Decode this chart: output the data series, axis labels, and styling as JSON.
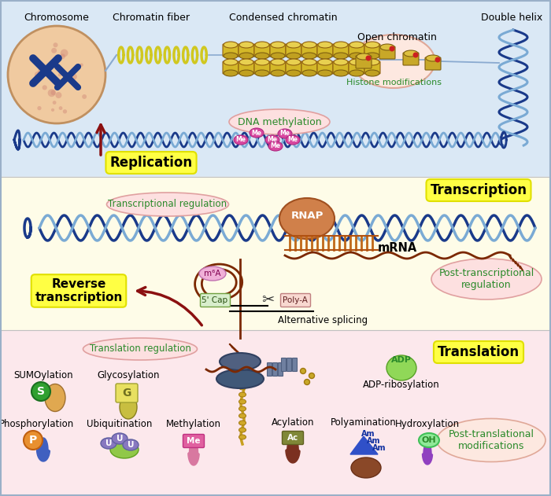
{
  "bg_top": "#dae8f5",
  "bg_mid": "#fefce8",
  "bg_bot": "#fce8ec",
  "color_dna1": "#1a3a8a",
  "color_dna2": "#7aaad4",
  "color_dna_rung": "#5580b0",
  "color_yellow_label": "#ffff00",
  "color_green_text": "#2a8a2a",
  "color_dark_red": "#8b1010",
  "color_histone_gold": "#c8a832",
  "color_histone_dark": "#a88420",
  "color_rnap": "#d4884a",
  "color_mrna": "#7b2800",
  "color_me_pink": "#d050a0",
  "figsize": [
    7.0,
    6.31
  ],
  "dpi": 100,
  "labels": {
    "chromosome": "Chromosome",
    "chromatin_fiber": "Chromatin fiber",
    "condensed": "Condensed chromatin",
    "open_chromatin": "Open chromatin",
    "histone_mod": "Histone modifications",
    "dna_methyl": "DNA methylation",
    "double_helix": "Double helix",
    "replication": "Replication",
    "transcription": "Transcription",
    "transcriptional_reg": "Transcriptional regulation",
    "rnap": "RNAP",
    "mrna": "mRNA",
    "post_transcriptional": "Post-transcriptional\nregulation",
    "reverse_transcription": "Reverse\ntranscription",
    "m6a": "m⁶A",
    "five_cap": "5' Cap",
    "poly_a": "Poly-A",
    "alt_splicing": "Alternative splicing",
    "translation": "Translation",
    "translation_reg": "Translation regulation",
    "post_translational": "Post-translational\nmodifications",
    "sumoylation": "SUMOylation",
    "glycosylation": "Glycosylation",
    "phosphorylation": "Phosphorylation",
    "ubiquitination": "Ubiquitination",
    "methylation": "Methylation",
    "acylation": "Acylation",
    "polyamination": "Polyamination",
    "hydroxylation": "Hydroxylation",
    "adp_ribosylation": "ADP-ribosylation",
    "adp": "ADP"
  }
}
